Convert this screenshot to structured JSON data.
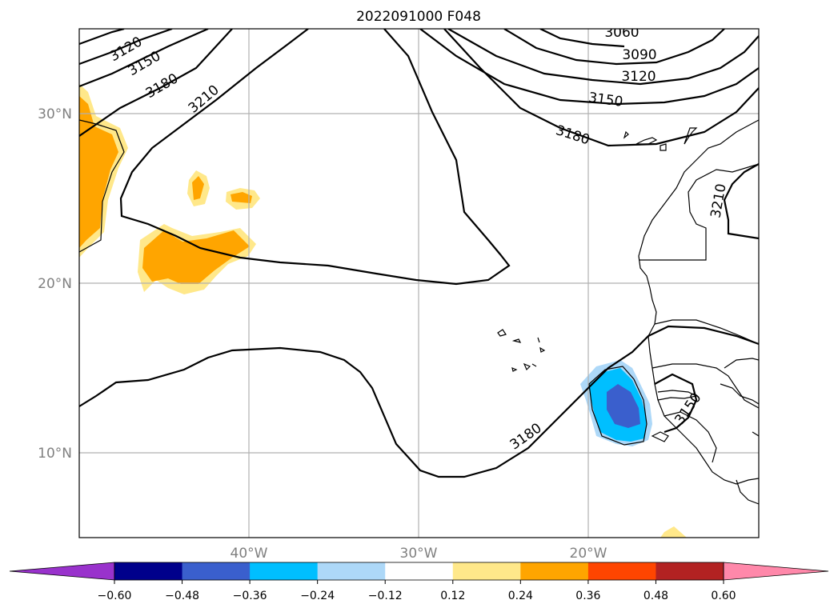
{
  "title": "2022091000 F048",
  "lat_labels": [
    "30°N",
    "20°N",
    "10°N"
  ],
  "lon_labels": [
    "40°W",
    "30°W",
    "20°W"
  ],
  "contour_labels": [
    "3120",
    "3150",
    "3180",
    "3210",
    "3060",
    "3090",
    "3120",
    "3150",
    "3180",
    "3210",
    "3180",
    "3150"
  ],
  "colorbar": {
    "ticks": [
      "−0.60",
      "−0.48",
      "−0.36",
      "−0.24",
      "−0.12",
      "0.12",
      "0.24",
      "0.36",
      "0.48",
      "0.60"
    ],
    "colors": [
      "#9932cc",
      "#00008b",
      "#3a5fcd",
      "#00bfff",
      "#add8f8",
      "#ffffff",
      "#ffe88a",
      "#ffa500",
      "#ff4500",
      "#b22222",
      "#ff88aa",
      "#ff88aa"
    ],
    "extend": "both"
  },
  "map": {
    "lon_range": [
      -50,
      -10
    ],
    "lat_range": [
      5,
      35
    ],
    "gridlines": true
  }
}
